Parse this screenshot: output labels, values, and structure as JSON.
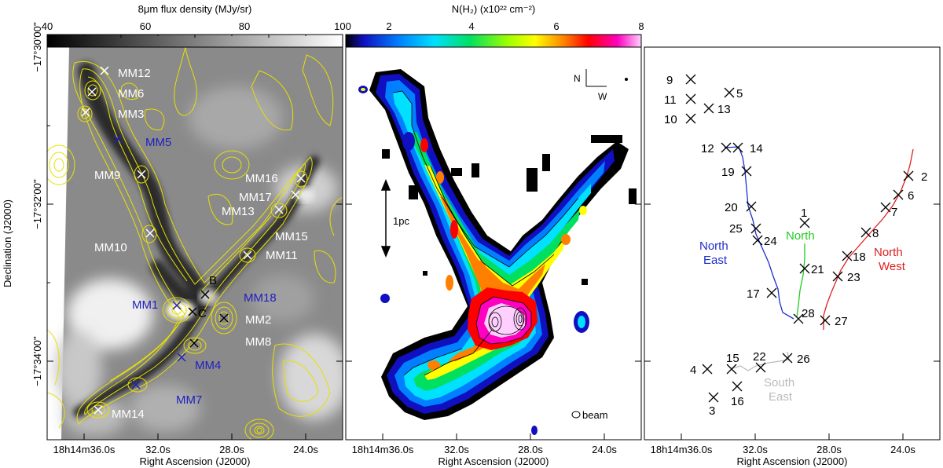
{
  "panel1": {
    "colorbar_label": "8μm flux density (MJy/sr)",
    "colorbar_ticks": [
      "40",
      "60",
      "80",
      "100"
    ],
    "ylabel": "Declination (J2000)",
    "xlabel": "Right Ascension (J2000)",
    "xticks": [
      "18h14m36.0s",
      "32.0s",
      "28.0s",
      "24.0s"
    ],
    "yticks": [
      "−17°30'00''",
      "−17°32'00''",
      "−17°34'00''"
    ],
    "sources_white": [
      "MM12",
      "MM6",
      "MM3",
      "MM9",
      "MM10",
      "MM16",
      "MM17",
      "MM13",
      "MM15",
      "MM11",
      "MM2",
      "MM8",
      "MM14"
    ],
    "sources_blue": [
      "MM5",
      "MM1",
      "MM18",
      "MM4",
      "MM7"
    ],
    "labels_black": [
      "B",
      "C"
    ]
  },
  "panel2": {
    "colorbar_label": "N(H₂) (x10²² cm⁻²)",
    "colorbar_ticks": [
      "2",
      "4",
      "6",
      "8"
    ],
    "xlabel": "Right Ascension (J2000)",
    "xticks": [
      "18h14m36.0s",
      "32.0s",
      "28.0s",
      "24.0s"
    ],
    "scalebar": "1pc",
    "compass_n": "N",
    "compass_w": "W",
    "beam_label": "beam"
  },
  "panel3": {
    "xlabel": "Right Ascension (J2000)",
    "xticks": [
      "18h14m36.0s",
      "32.0s",
      "28.0s",
      "24.0s"
    ],
    "branches": [
      {
        "name": [
          "North",
          "East"
        ],
        "color": "#1f2ecc"
      },
      {
        "name": [
          "North"
        ],
        "color": "#22cc22"
      },
      {
        "name": [
          "North",
          "West"
        ],
        "color": "#e02020"
      },
      {
        "name": [
          "South",
          "East"
        ],
        "color": "#bbbbbb"
      }
    ],
    "clump_numbers": [
      "9",
      "5",
      "11",
      "13",
      "10",
      "12",
      "14",
      "19",
      "2",
      "6",
      "20",
      "7",
      "1",
      "25",
      "24",
      "8",
      "18",
      "21",
      "23",
      "17",
      "28",
      "27",
      "15",
      "22",
      "26",
      "4",
      "16",
      "3"
    ]
  }
}
